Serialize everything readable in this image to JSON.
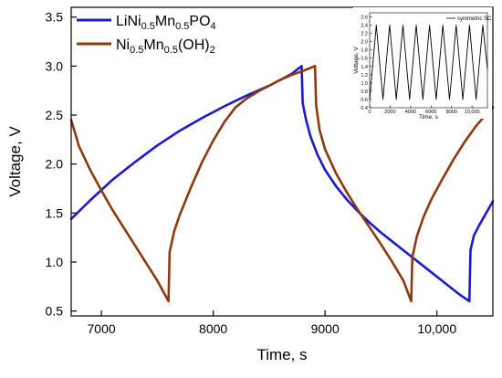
{
  "chart_data": [
    {
      "type": "line",
      "xlabel": "Time, s",
      "ylabel": "Voltage, V",
      "xlim": [
        6730,
        10500
      ],
      "ylim": [
        0.45,
        3.6
      ],
      "xticks": [
        7000,
        8000,
        9000,
        10000
      ],
      "xtick_labels": [
        "7000",
        "8000",
        "9000",
        "10,000"
      ],
      "yticks": [
        0.5,
        1.0,
        1.5,
        2.0,
        2.5,
        3.0,
        3.5
      ],
      "ytick_labels": [
        "0.5",
        "1.0",
        "1.5",
        "2.0",
        "2.5",
        "3.0",
        "3.5"
      ],
      "grid": false,
      "legend_position": "top-left",
      "series": [
        {
          "name_main": "LiNi",
          "name_parts": [
            {
              "t": "LiNi",
              "sub": false
            },
            {
              "t": "0.5",
              "sub": true
            },
            {
              "t": "Mn",
              "sub": false
            },
            {
              "t": "0.5",
              "sub": true
            },
            {
              "t": "PO",
              "sub": false
            },
            {
              "t": "4",
              "sub": true
            }
          ],
          "color": "#1a1acc",
          "x": [
            6730,
            6900,
            7100,
            7300,
            7500,
            7700,
            7900,
            8100,
            8300,
            8500,
            8700,
            8790,
            8800,
            8830,
            8870,
            8930,
            9000,
            9100,
            9200,
            9300,
            9400,
            9500,
            9600,
            9700,
            9800,
            9900,
            10000,
            10100,
            10200,
            10290,
            10300,
            10330,
            10380,
            10440,
            10500
          ],
          "y": [
            1.44,
            1.63,
            1.84,
            2.02,
            2.19,
            2.34,
            2.47,
            2.59,
            2.7,
            2.8,
            2.92,
            3.0,
            2.62,
            2.45,
            2.28,
            2.1,
            1.94,
            1.77,
            1.63,
            1.51,
            1.4,
            1.3,
            1.21,
            1.12,
            1.03,
            0.94,
            0.85,
            0.76,
            0.67,
            0.6,
            1.12,
            1.27,
            1.38,
            1.5,
            1.62
          ]
        },
        {
          "name_main": "Ni",
          "name_parts": [
            {
              "t": "Ni",
              "sub": false
            },
            {
              "t": "0.5",
              "sub": true
            },
            {
              "t": "Mn",
              "sub": false
            },
            {
              "t": "0.5",
              "sub": true
            },
            {
              "t": "(OH)",
              "sub": false
            },
            {
              "t": "2",
              "sub": true
            }
          ],
          "color": "#8b3a10",
          "x": [
            6730,
            6800,
            6900,
            7000,
            7100,
            7200,
            7300,
            7400,
            7500,
            7600,
            7610,
            7650,
            7700,
            7800,
            7900,
            8000,
            8100,
            8200,
            8300,
            8400,
            8500,
            8600,
            8700,
            8800,
            8910,
            8920,
            8950,
            9000,
            9100,
            9200,
            9300,
            9400,
            9500,
            9600,
            9700,
            9770,
            9780,
            9820,
            9880,
            9950,
            10050,
            10150,
            10250,
            10350,
            10450,
            10500
          ],
          "y": [
            2.45,
            2.18,
            1.94,
            1.73,
            1.53,
            1.35,
            1.17,
            0.99,
            0.81,
            0.6,
            1.1,
            1.31,
            1.48,
            1.76,
            2.02,
            2.24,
            2.43,
            2.58,
            2.67,
            2.74,
            2.8,
            2.86,
            2.91,
            2.95,
            3.0,
            2.6,
            2.35,
            2.15,
            1.9,
            1.7,
            1.52,
            1.35,
            1.18,
            1.0,
            0.81,
            0.6,
            1.05,
            1.26,
            1.46,
            1.64,
            1.85,
            2.05,
            2.23,
            2.39,
            2.52,
            2.58
          ]
        }
      ]
    },
    {
      "type": "line",
      "xlabel": "Time, s",
      "ylabel": "Voltage, V",
      "xlim": [
        0,
        11500
      ],
      "ylim": [
        0.4,
        2.7
      ],
      "xticks": [
        0,
        2000,
        4000,
        6000,
        8000,
        10000
      ],
      "xtick_labels": [
        "0",
        "2000",
        "4000",
        "6000",
        "8000",
        "10,000"
      ],
      "yticks": [
        0.4,
        0.6,
        0.8,
        1.0,
        1.2,
        1.4,
        1.6,
        1.8,
        2.0,
        2.2,
        2.4,
        2.6
      ],
      "ytick_labels": [
        "0.4",
        "0.6",
        "0.8",
        "1.0",
        "1.2",
        "1.4",
        "1.6",
        "1.8",
        "2.0",
        "2.2",
        "2.4",
        "2.6"
      ],
      "legend_position": "top-right",
      "series": [
        {
          "name": "symmetric SC",
          "color": "#000000",
          "x": [
            0,
            650,
            1300,
            1950,
            2600,
            3250,
            3900,
            4550,
            5200,
            5850,
            6500,
            7150,
            7800,
            8450,
            9100,
            9750,
            10400,
            11050,
            11500
          ],
          "y": [
            0.6,
            2.4,
            0.6,
            2.4,
            0.6,
            2.4,
            0.6,
            2.4,
            0.6,
            2.4,
            0.6,
            2.4,
            0.6,
            2.4,
            0.6,
            2.4,
            0.6,
            2.4,
            1.35
          ]
        }
      ]
    }
  ]
}
